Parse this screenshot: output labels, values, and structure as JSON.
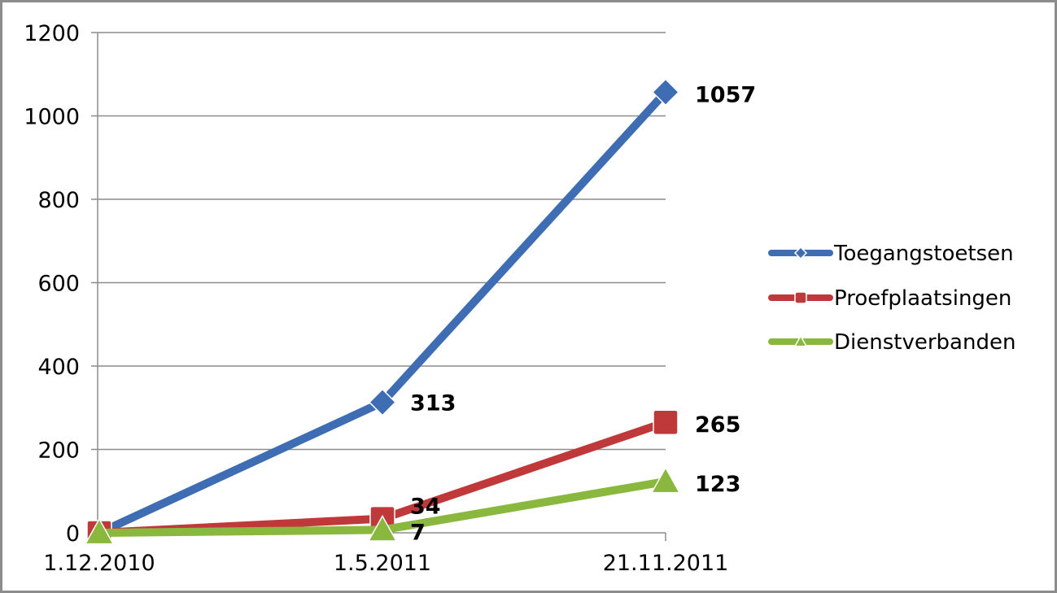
{
  "chart_data": {
    "type": "line",
    "categories": [
      "1.12.2010",
      "1.5.2011",
      "21.11.2011"
    ],
    "ylim": [
      0,
      1200
    ],
    "yticks": [
      0,
      200,
      400,
      600,
      800,
      1000,
      1200
    ],
    "grid": true,
    "legend_position": "right",
    "series": [
      {
        "name": "Toegangstoetsen",
        "values": [
          0,
          313,
          1057
        ],
        "labels": [
          "",
          "313",
          "1057"
        ],
        "color": "#3e6db4",
        "marker": "diamond"
      },
      {
        "name": "Proefplaatsingen",
        "values": [
          0,
          34,
          265
        ],
        "labels": [
          "",
          "34",
          "265"
        ],
        "color": "#c0393a",
        "marker": "square"
      },
      {
        "name": "Dienstverbanden",
        "values": [
          0,
          7,
          123
        ],
        "labels": [
          "",
          "7",
          "123"
        ],
        "color": "#8ab73e",
        "marker": "triangle"
      }
    ]
  }
}
